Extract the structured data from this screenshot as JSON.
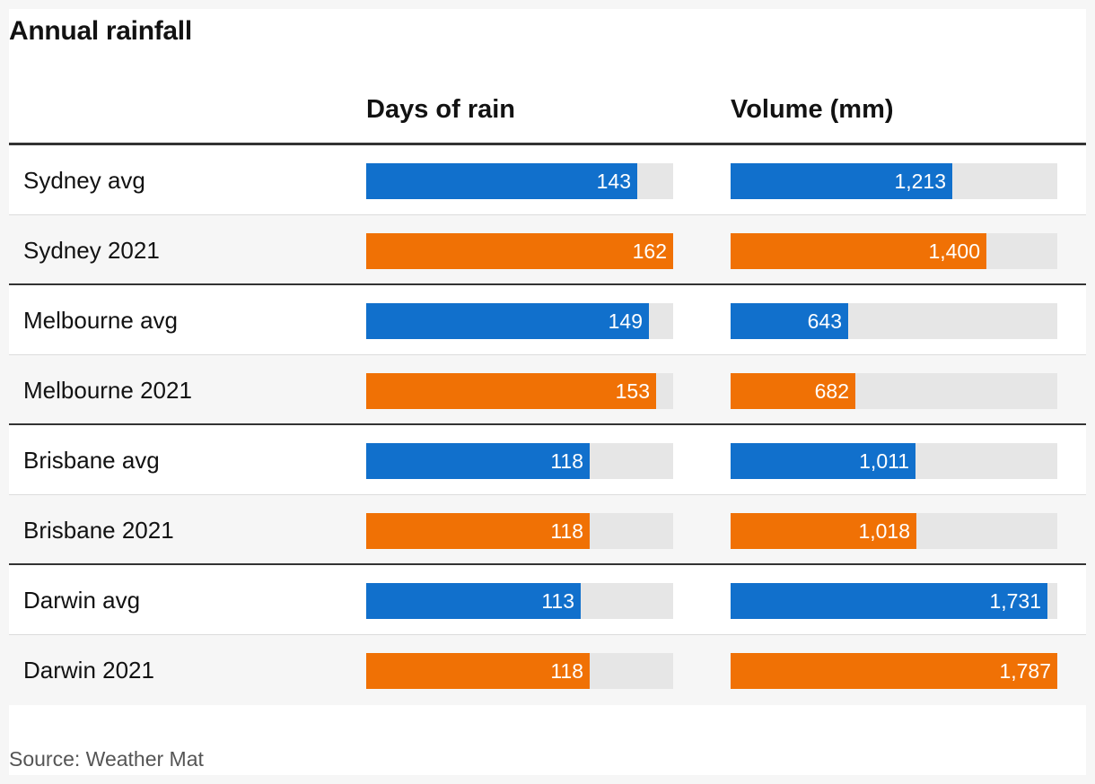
{
  "title": "Annual rainfall",
  "source": "Source: Weather Mat",
  "chart_data": {
    "type": "bar",
    "title": "Annual rainfall",
    "categories": [
      "Sydney avg",
      "Sydney 2021",
      "Melbourne avg",
      "Melbourne 2021",
      "Brisbane avg",
      "Brisbane 2021",
      "Darwin avg",
      "Darwin 2021"
    ],
    "series": [
      {
        "name": "Days of rain",
        "values": [
          143,
          162,
          149,
          153,
          118,
          118,
          113,
          118
        ],
        "labels": [
          "143",
          "162",
          "149",
          "153",
          "118",
          "118",
          "113",
          "118"
        ],
        "max": 162
      },
      {
        "name": "Volume (mm)",
        "values": [
          1213,
          1400,
          643,
          682,
          1011,
          1018,
          1731,
          1787
        ],
        "labels": [
          "1,213",
          "1,400",
          "643",
          "682",
          "1,011",
          "1,018",
          "1,731",
          "1,787"
        ],
        "max": 1787
      }
    ],
    "colors": {
      "avg": "#1170cc",
      "year_2021": "#f07105",
      "track": "#e6e6e6"
    }
  }
}
